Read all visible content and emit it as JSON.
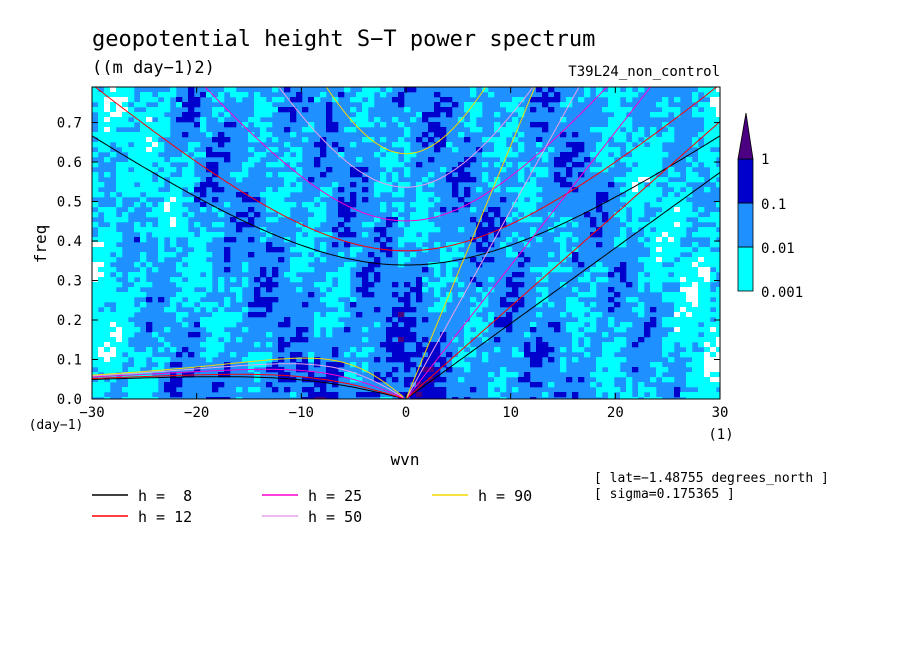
{
  "chart_data": {
    "type": "heatmap",
    "title": "geopotential height S−T power spectrum",
    "subtitle": "((m day−1)2)",
    "run_label": "T39L24_non_control",
    "xlabel": "wvn",
    "xlabel_unit": "(1)",
    "ylabel": "freq",
    "ylabel_unit": "(day−1)",
    "xlim": [
      -30,
      30
    ],
    "ylim": [
      0,
      0.79
    ],
    "x_ticks": [
      -30,
      -20,
      -10,
      0,
      10,
      20,
      30
    ],
    "x_tick_labels": [
      "−30",
      "−20",
      "−10",
      "0",
      "10",
      "20",
      "30"
    ],
    "y_ticks": [
      0,
      0.1,
      0.2,
      0.3,
      0.4,
      0.5,
      0.6,
      0.7
    ],
    "y_tick_labels": [
      "0.0",
      "0.1",
      "0.2",
      "0.3",
      "0.4",
      "0.5",
      "0.6",
      "0.7"
    ],
    "colorbar": {
      "levels": [
        "0.001",
        "0.01",
        "0.1",
        "1"
      ],
      "colors": [
        "#ffffff",
        "#00ffff",
        "#1e90ff",
        "#0000cd",
        "#4b0082"
      ]
    },
    "curves": [
      {
        "name": "h =  8",
        "h": 8,
        "color": "#000000"
      },
      {
        "name": "h = 12",
        "h": 12,
        "color": "#ff0000"
      },
      {
        "name": "h = 25",
        "h": 25,
        "color": "#ff00cc"
      },
      {
        "name": "h = 50",
        "h": 50,
        "color": "#e8a0e8"
      },
      {
        "name": "h = 90",
        "h": 90,
        "color": "#f5d800"
      }
    ],
    "annotations": [
      "[ lat=−1.48755 degrees_north ]",
      "[ sigma=0.175365 ]"
    ]
  }
}
